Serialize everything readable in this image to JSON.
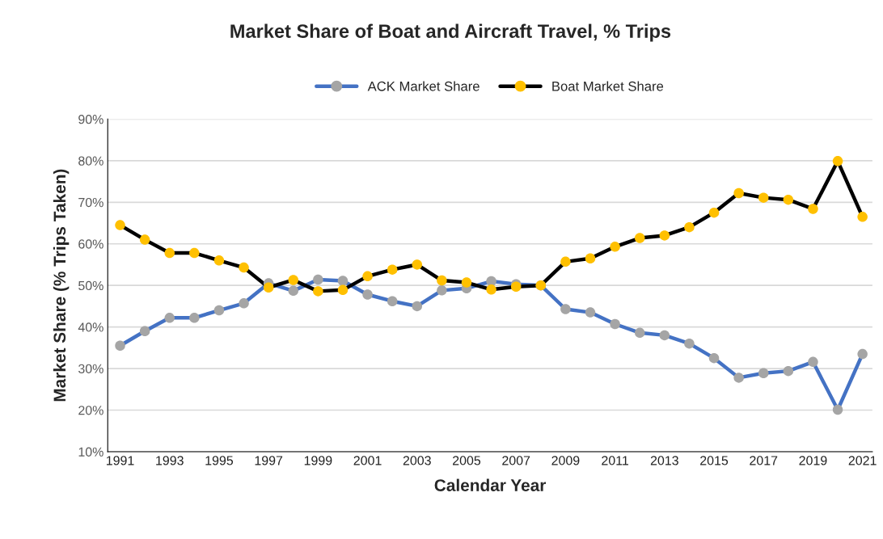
{
  "chart_data": {
    "type": "line",
    "title": "Market Share of Boat and Aircraft Travel, % Trips",
    "xlabel": "Calendar Year",
    "ylabel": "Market Share (% Trips Taken)",
    "x": [
      1991,
      1992,
      1993,
      1994,
      1995,
      1996,
      1997,
      1998,
      1999,
      2000,
      2001,
      2002,
      2003,
      2004,
      2005,
      2006,
      2007,
      2008,
      2009,
      2010,
      2011,
      2012,
      2013,
      2014,
      2015,
      2016,
      2017,
      2018,
      2019,
      2020,
      2021
    ],
    "series": [
      {
        "name": "ACK Market Share",
        "color": "#4472c4",
        "colors": [
          "#a5a5a5",
          "#a5a5a5",
          "#a5a5a5",
          "#a5a5a5",
          "#a5a5a5",
          "#a5a5a5",
          "#a5a5a5",
          "#a5a5a5",
          "#a5a5a5",
          "#a5a5a5",
          "#a5a5a5",
          "#a5a5a5",
          "#a5a5a5",
          "#a5a5a5",
          "#a5a5a5",
          "#a5a5a5",
          "#a5a5a5",
          "#a5a5a5",
          "#a5a5a5",
          "#a5a5a5",
          "#a5a5a5",
          "#a5a5a5",
          "#a5a5a5",
          "#a5a5a5",
          "#a5a5a5",
          "#a5a5a5",
          "#a5a5a5",
          "#a5a5a5",
          "#a5a5a5",
          "#a5a5a5",
          "#a5a5a5"
        ],
        "values": [
          35.5,
          39,
          42.2,
          42.2,
          44,
          45.7,
          50.5,
          48.7,
          51.4,
          51.1,
          47.8,
          46.2,
          45,
          48.8,
          49.3,
          51,
          50.3,
          50,
          44.3,
          43.5,
          40.7,
          38.6,
          38,
          36,
          32.5,
          27.8,
          28.9,
          29.4,
          31.6,
          20.1,
          33.5
        ]
      },
      {
        "name": "Boat Market Share",
        "color": "#000000",
        "colors": [
          "#ffc000",
          "#ffc000",
          "#ffc000",
          "#ffc000",
          "#ffc000",
          "#ffc000",
          "#ffc000",
          "#ffc000",
          "#ffc000",
          "#ffc000",
          "#ffc000",
          "#ffc000",
          "#ffc000",
          "#ffc000",
          "#ffc000",
          "#ffc000",
          "#ffc000",
          "#ffc000",
          "#ffc000",
          "#ffc000",
          "#ffc000",
          "#ffc000",
          "#ffc000",
          "#ffc000",
          "#ffc000",
          "#ffc000",
          "#ffc000",
          "#ffc000",
          "#ffc000",
          "#ffc000",
          "#ffc000"
        ],
        "values": [
          64.5,
          61,
          57.8,
          57.8,
          56,
          54.3,
          49.5,
          51.3,
          48.6,
          48.9,
          52.2,
          53.8,
          55,
          51.2,
          50.7,
          49,
          49.7,
          50,
          55.7,
          56.5,
          59.3,
          61.4,
          62,
          64,
          67.5,
          72.2,
          71.1,
          70.6,
          68.4,
          79.9,
          66.5
        ]
      }
    ],
    "xlim": [
      1990.5,
      2021.4
    ],
    "xticks": [
      1991,
      1993,
      1995,
      1997,
      1999,
      2001,
      2003,
      2005,
      2007,
      2009,
      2011,
      2013,
      2015,
      2017,
      2019,
      2021
    ],
    "ylim": [
      10,
      90
    ],
    "yticks": [
      {
        "value": 10,
        "label": "10%"
      },
      {
        "value": 20,
        "label": "20%"
      },
      {
        "value": 30,
        "label": "30%"
      },
      {
        "value": 40,
        "label": "40%"
      },
      {
        "value": 50,
        "label": "50%"
      },
      {
        "value": 60,
        "label": "60%"
      },
      {
        "value": 70,
        "label": "70%"
      },
      {
        "value": 80,
        "label": "80%"
      },
      {
        "value": 90,
        "label": "90%"
      }
    ],
    "grid": "y",
    "legend": "top",
    "marker": "circle",
    "line_style": "solid"
  }
}
